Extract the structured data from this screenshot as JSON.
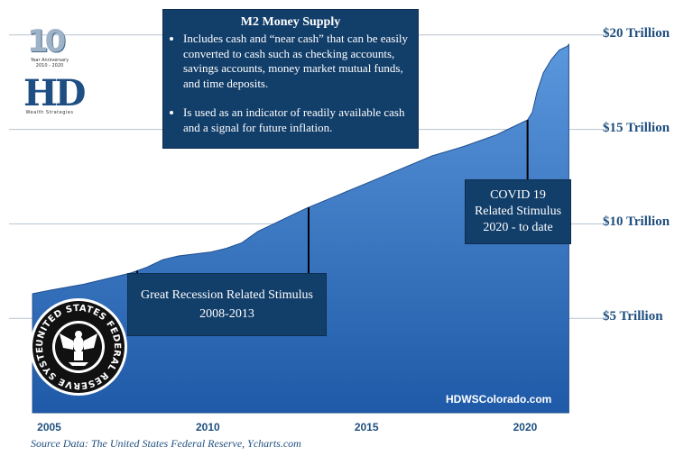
{
  "chart_data": {
    "type": "area",
    "title": "M2 Money Supply",
    "x": [
      2004.4,
      2005.0,
      2006.0,
      2007.0,
      2007.5,
      2008.0,
      2008.5,
      2009.0,
      2009.5,
      2010.0,
      2010.5,
      2011.0,
      2011.5,
      2012.0,
      2012.5,
      2013.0,
      2014.0,
      2015.0,
      2016.0,
      2017.0,
      2018.0,
      2019.0,
      2019.5,
      2020.0,
      2020.15,
      2020.3,
      2020.5,
      2020.75,
      2021.0,
      2021.25,
      2021.3
    ],
    "values": [
      6.3,
      6.5,
      6.8,
      7.2,
      7.4,
      7.7,
      8.1,
      8.3,
      8.4,
      8.5,
      8.7,
      9.0,
      9.6,
      10.0,
      10.4,
      10.8,
      11.5,
      12.2,
      12.9,
      13.6,
      14.1,
      14.7,
      15.1,
      15.5,
      15.9,
      17.0,
      18.0,
      18.7,
      19.2,
      19.4,
      19.5
    ],
    "ylim": [
      0,
      20.8
    ],
    "xlim": [
      2004.0,
      2022.2
    ],
    "yticks": [
      {
        "value": 5,
        "label": "$5 Trillion"
      },
      {
        "value": 10,
        "label": "$10 Trillion"
      },
      {
        "value": 15,
        "label": "$15 Trillion"
      },
      {
        "value": 20,
        "label": "$20 Trillion"
      }
    ],
    "xticks": [
      {
        "value": 2005,
        "label": "2005"
      },
      {
        "value": 2010,
        "label": "2010"
      },
      {
        "value": 2015,
        "label": "2015"
      },
      {
        "value": 2020,
        "label": "2020"
      }
    ],
    "markers": [
      {
        "x": 2007.7
      },
      {
        "x": 2013.1
      },
      {
        "x": 2020.0
      }
    ],
    "grid": true,
    "colors": {
      "fill_top": "#4f8bd4",
      "fill_bottom": "#1f5aa8",
      "marker": "#000000",
      "grid": "#b8c4d0",
      "text": "#1f4f7f",
      "box": "#123e6a"
    }
  },
  "logo": {
    "number": "10",
    "anniversary_line1": "Year Anniversary",
    "anniversary_line2": "2010 - 2020",
    "initials": "HD",
    "tagline": "Wealth Strategies"
  },
  "annotation_m2": {
    "title": "M2 Money Supply",
    "bullet1": "Includes cash and “near cash” that can be easily converted to cash such as checking accounts, savings accounts, money market mutual funds, and time deposits.",
    "bullet2": "Is used as an indicator of readily available cash and a signal for future inflation."
  },
  "annotation_recession": {
    "line1": "Great Recession Related Stimulus",
    "line2": "2008-2013"
  },
  "annotation_covid": {
    "line1": "COVID 19",
    "line2": "Related Stimulus",
    "line3": "2020 - to date"
  },
  "seal": {
    "text": "UNITED STATES FEDERAL RESERVE SYSTEM",
    "icon": "federal-reserve-seal"
  },
  "website": "HDWSColorado.com",
  "source": "Source Data: The United States Federal Reserve, Ycharts.com"
}
